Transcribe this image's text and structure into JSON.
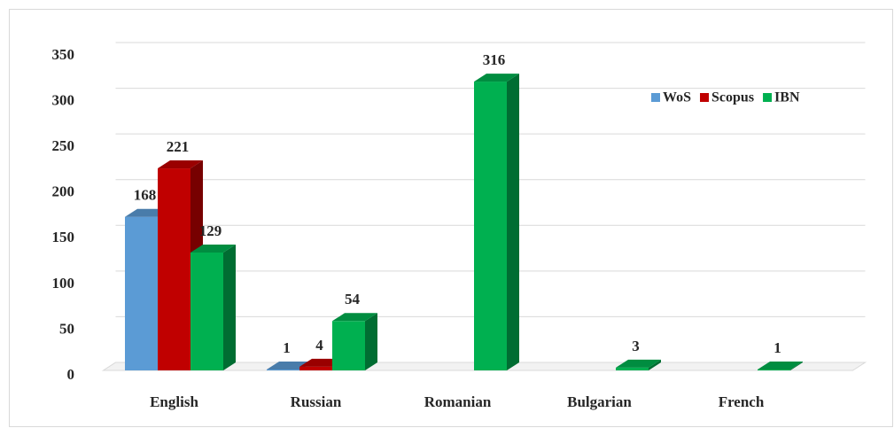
{
  "chart_data": {
    "type": "bar",
    "categories": [
      "English",
      "Russian",
      "Romanian",
      "Bulgarian",
      "French"
    ],
    "series": [
      {
        "name": "WoS",
        "color": "#5b9bd5",
        "values": [
          168,
          1,
          null,
          null,
          null
        ]
      },
      {
        "name": "Scopus",
        "color": "#c00000",
        "values": [
          221,
          4,
          null,
          null,
          null
        ]
      },
      {
        "name": "IBN",
        "color": "#00b050",
        "values": [
          129,
          54,
          316,
          3,
          1
        ]
      }
    ],
    "ylim": [
      0,
      350
    ],
    "yticks": [
      0,
      50,
      100,
      150,
      200,
      250,
      300,
      350
    ],
    "grid": true,
    "legend": "top-right"
  }
}
